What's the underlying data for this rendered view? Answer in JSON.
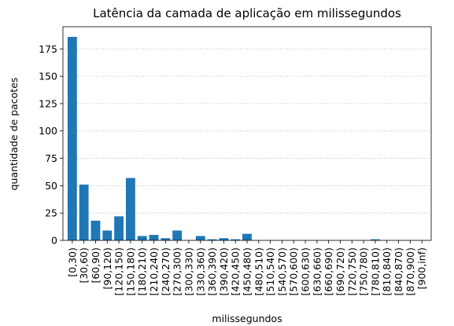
{
  "chart_data": {
    "type": "bar",
    "title": "Latência da camada de aplicação em milissegundos",
    "xlabel": "milissegundos",
    "ylabel": "quantidade de pacotes",
    "categories": [
      "[0,30)",
      "[30,60)",
      "[60,90)",
      "[90,120)",
      "[120,150)",
      "[150,180)",
      "[180,210)",
      "[210,240)",
      "[240,270)",
      "[270,300)",
      "[300,330)",
      "[330,360)",
      "[360,390)",
      "[390,420)",
      "[420,450)",
      "[450,480)",
      "[480,510)",
      "[510,540)",
      "[540,570)",
      "[570,600)",
      "[600,630)",
      "[630,660)",
      "[660,690)",
      "[690,720)",
      "[720,750)",
      "[750,780)",
      "[780,810)",
      "[810,840)",
      "[840,870)",
      "[870,900)",
      "[900,inf)"
    ],
    "values": [
      186,
      51,
      18,
      9,
      22,
      57,
      4,
      5,
      2,
      9,
      0,
      4,
      1,
      2,
      1,
      6,
      0,
      0,
      0,
      0,
      0,
      0,
      0,
      0,
      0,
      0,
      1,
      0,
      0,
      0,
      0
    ],
    "yticks": [
      0,
      25,
      50,
      75,
      100,
      125,
      150,
      175
    ],
    "ylim": [
      0,
      195.3
    ],
    "grid": "y-dotted",
    "bar_color": "#1f77b4",
    "grid_color": "#b0b0b0"
  }
}
